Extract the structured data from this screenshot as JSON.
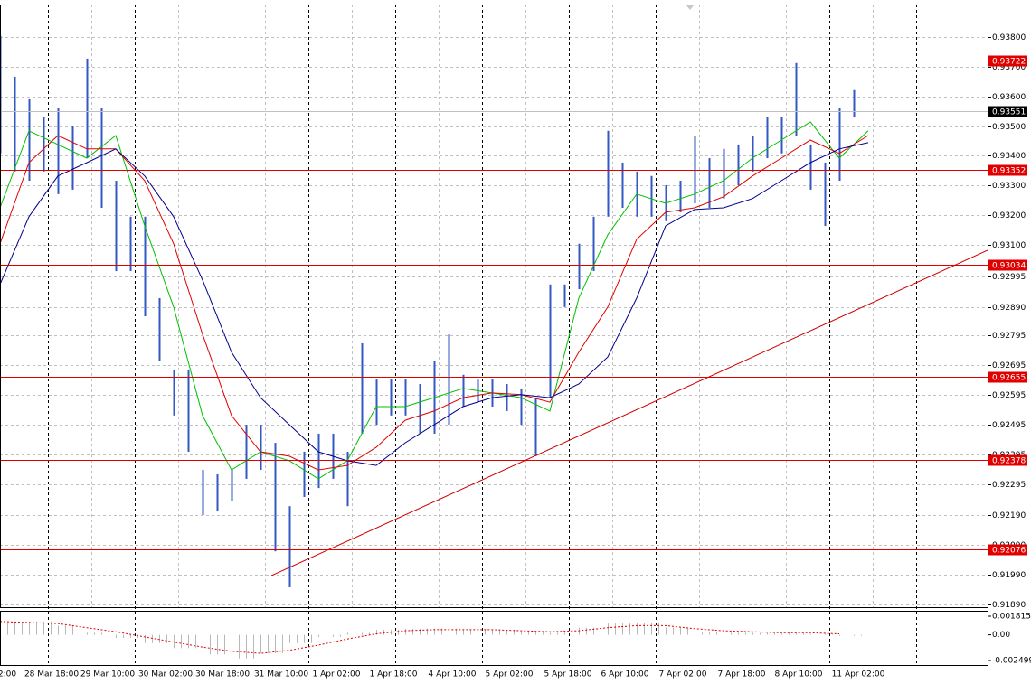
{
  "chart_data": {
    "type": "range",
    "x": [
      0,
      1,
      2,
      3,
      4,
      5,
      6,
      7,
      8,
      9,
      10,
      11,
      12,
      13,
      14,
      15,
      16,
      17,
      18,
      19,
      20,
      21,
      22,
      23,
      24,
      25,
      26,
      27,
      28,
      29,
      30,
      31,
      32,
      33,
      34,
      35,
      36,
      37,
      38,
      39,
      40,
      41,
      42,
      43,
      44,
      45,
      46,
      47,
      48,
      49,
      50,
      51,
      52,
      53,
      54,
      55,
      56,
      57,
      58,
      59
    ],
    "high": [
      0.93803,
      0.93666,
      0.9359,
      0.93529,
      0.9356,
      0.93499,
      0.93727,
      0.9356,
      0.93316,
      0.93195,
      0.93195,
      0.92921,
      0.92678,
      0.92678,
      0.92343,
      0.92328,
      0.92343,
      0.92495,
      0.92495,
      0.92434,
      0.92221,
      0.92404,
      0.92465,
      0.92465,
      0.92404,
      0.92769,
      0.92647,
      0.92647,
      0.92647,
      0.92632,
      0.92708,
      0.92799,
      0.92663,
      0.92647,
      0.92647,
      0.92632,
      0.92617,
      0.92586,
      0.92967,
      0.92967,
      0.93104,
      0.93195,
      0.93484,
      0.93377,
      0.93347,
      0.93332,
      0.93301,
      0.93316,
      0.93468,
      0.93392,
      0.93423,
      0.93438,
      0.93468,
      0.93529,
      0.93529,
      0.93712,
      0.93438,
      0.93377,
      0.9356,
      0.93621
    ],
    "low": [
      0.93408,
      0.93347,
      0.93316,
      0.93347,
      0.93271,
      0.93286,
      0.93392,
      0.93225,
      0.93012,
      0.93012,
      0.9286,
      0.92708,
      0.92526,
      0.92404,
      0.92191,
      0.92206,
      0.92237,
      0.92313,
      0.92343,
      0.92069,
      0.91948,
      0.92252,
      0.92282,
      0.92313,
      0.92221,
      0.92465,
      0.92495,
      0.92526,
      0.92526,
      0.92465,
      0.92465,
      0.92495,
      0.92556,
      0.92571,
      0.92556,
      0.92541,
      0.92495,
      0.92389,
      0.92586,
      0.92891,
      0.92951,
      0.93012,
      0.93195,
      0.93225,
      0.93195,
      0.93195,
      0.9318,
      0.9321,
      0.9324,
      0.93225,
      0.93256,
      0.93301,
      0.93347,
      0.93392,
      0.93408,
      0.93468,
      0.93286,
      0.93164,
      0.93316,
      0.93529
    ],
    "color": "#3358c4",
    "xlim": [
      0,
      68.25
    ],
    "ylim": [
      0.91881,
      0.93909
    ],
    "grid": true,
    "yticks": [
      {
        "value": 0.938,
        "label": "0.93800"
      },
      {
        "value": 0.937,
        "label": "0.93700"
      },
      {
        "value": 0.936,
        "label": "0.93600"
      },
      {
        "value": 0.935,
        "label": "0.93500"
      },
      {
        "value": 0.934,
        "label": "0.93400"
      },
      {
        "value": 0.933,
        "label": "0.93300"
      },
      {
        "value": 0.932,
        "label": "0.93200"
      },
      {
        "value": 0.931,
        "label": "0.93100"
      },
      0.92995,
      {
        "value": 0.9289,
        "label": "0.92890"
      },
      0.92795,
      0.92695,
      0.92595,
      0.92495,
      0.92395,
      0.92295,
      {
        "value": 0.9219,
        "label": "0.92190"
      },
      {
        "value": 0.9209,
        "label": "0.92090"
      },
      {
        "value": 0.9199,
        "label": "0.91990"
      },
      {
        "value": 0.9189,
        "label": "0.91890"
      }
    ],
    "xticks": [
      {
        "value": 0.5,
        "label": "2:00"
      },
      {
        "value": 3.5625,
        "label": "28 Mar 18:00"
      },
      {
        "value": 7.4375,
        "label": "29 Mar 10:00"
      },
      {
        "value": 11.4375,
        "label": "30 Mar 02:00"
      },
      {
        "value": 15.375,
        "label": "30 Mar 18:00"
      },
      {
        "value": 19.4375,
        "label": "31 Mar 10:00"
      },
      {
        "value": 23.25,
        "label": "1 Apr 02:00"
      },
      {
        "value": 27.1875,
        "label": "1 Apr 18:00"
      },
      {
        "value": 31.25,
        "label": "4 Apr 10:00"
      },
      {
        "value": 35.1875,
        "label": "5 Apr 02:00"
      },
      {
        "value": 39.25,
        "label": "5 Apr 18:00"
      },
      {
        "value": 43.1875,
        "label": "6 Apr 10:00"
      },
      {
        "value": 47.1875,
        "label": "7 Apr 02:00"
      },
      {
        "value": 51.25,
        "label": "7 Apr 18:00"
      },
      {
        "value": 55.1875,
        "label": "8 Apr 10:00"
      },
      {
        "value": 59.3125,
        "label": "11 Apr 02:00"
      }
    ],
    "moving_averages": [
      {
        "color": "#00c000",
        "x": [
          0,
          2,
          4,
          6,
          8,
          10,
          12,
          14,
          16,
          18,
          20,
          22,
          24,
          26,
          28,
          30,
          32,
          34,
          36,
          38,
          40,
          42,
          44,
          46,
          48,
          50,
          52,
          54,
          56,
          58,
          60
        ],
        "values": [
          0.93225,
          0.93484,
          0.93438,
          0.93392,
          0.93468,
          0.93164,
          0.92891,
          0.92526,
          0.92343,
          0.92404,
          0.92374,
          0.92313,
          0.92374,
          0.92556,
          0.92556,
          0.92586,
          0.92617,
          0.92602,
          0.92586,
          0.92541,
          0.92921,
          0.93134,
          0.93271,
          0.9324,
          0.93271,
          0.93316,
          0.93392,
          0.93453,
          0.93514,
          0.93392,
          0.93484
        ]
      },
      {
        "color": "#e00000",
        "x": [
          0,
          2,
          4,
          6,
          8,
          10,
          12,
          14,
          16,
          18,
          20,
          22,
          24,
          26,
          28,
          30,
          32,
          34,
          36,
          38,
          40,
          42,
          44,
          46,
          48,
          50,
          52,
          54,
          56,
          58,
          60
        ],
        "values": [
          0.93104,
          0.93377,
          0.93468,
          0.93423,
          0.93423,
          0.93316,
          0.93104,
          0.92799,
          0.92526,
          0.92404,
          0.92389,
          0.92343,
          0.92358,
          0.92419,
          0.9251,
          0.92541,
          0.92586,
          0.92602,
          0.92596,
          0.92571,
          0.92739,
          0.92891,
          0.93119,
          0.9321,
          0.93225,
          0.93262,
          0.93332,
          0.93392,
          0.93453,
          0.93408,
          0.93468
        ]
      },
      {
        "color": "#00008b",
        "x": [
          0,
          2,
          4,
          6,
          8,
          10,
          12,
          14,
          16,
          18,
          20,
          22,
          24,
          26,
          28,
          30,
          32,
          34,
          36,
          38,
          40,
          42,
          44,
          46,
          48,
          50,
          52,
          54,
          56,
          58,
          60
        ],
        "values": [
          0.92967,
          0.93195,
          0.93332,
          0.93377,
          0.93423,
          0.93332,
          0.93195,
          0.92982,
          0.92739,
          0.92586,
          0.92495,
          0.92404,
          0.92374,
          0.92358,
          0.92434,
          0.92495,
          0.92556,
          0.92586,
          0.92596,
          0.92586,
          0.92632,
          0.92723,
          0.92921,
          0.93164,
          0.93219,
          0.93225,
          0.93256,
          0.93316,
          0.93377,
          0.93423,
          0.93444
        ]
      }
    ],
    "levels": [
      0.93722,
      0.93352,
      0.93034,
      0.92655,
      0.92378,
      0.92076
    ],
    "level_color": "#e00000",
    "current_price": 0.93551,
    "trendline": {
      "color": "#d00000",
      "x": [
        18.75,
        68.25
      ],
      "values": [
        0.91987,
        0.93082
      ]
    },
    "oscillator": {
      "x": [
        0,
        2,
        4,
        6,
        8,
        10,
        12,
        14,
        16,
        18,
        20,
        22,
        24,
        26,
        28,
        30,
        32,
        34,
        36,
        38,
        40,
        42,
        44,
        46,
        48,
        50,
        52,
        54,
        56,
        58
      ],
      "histogram": [
        0.0012,
        0.0013,
        0.0009,
        0.0002,
        -0.0003,
        -0.0008,
        -0.0013,
        -0.0019,
        -0.0023,
        -0.0018,
        -0.0008,
        -0.0002,
        0.0002,
        0.0005,
        0.0006,
        0.0006,
        0.0005,
        0.0005,
        0.0003,
        0.0002,
        0.0007,
        0.0011,
        0.0012,
        0.0007,
        0.0003,
        0.0002,
        0.0002,
        0.0002,
        0.0001,
        -0.0001
      ],
      "signal": [
        0.0013,
        0.0012,
        0.0011,
        0.0007,
        0.0003,
        -0.0002,
        -0.0007,
        -0.0012,
        -0.0016,
        -0.0018,
        -0.0015,
        -0.001,
        -0.0004,
        0.0001,
        0.0004,
        0.0005,
        0.0005,
        0.0005,
        0.0004,
        0.0003,
        0.0004,
        0.0007,
        0.0009,
        0.0009,
        0.0006,
        0.0004,
        0.0003,
        0.0002,
        0.0002,
        0.0001
      ],
      "histogram_color": "#b8b8b8",
      "signal_color": "#e00000",
      "ylim": [
        -0.002499,
        0.001815
      ],
      "yticks": [
        0.001815,
        {
          "value": 0,
          "label": "0.00"
        },
        -0.002499
      ]
    }
  }
}
